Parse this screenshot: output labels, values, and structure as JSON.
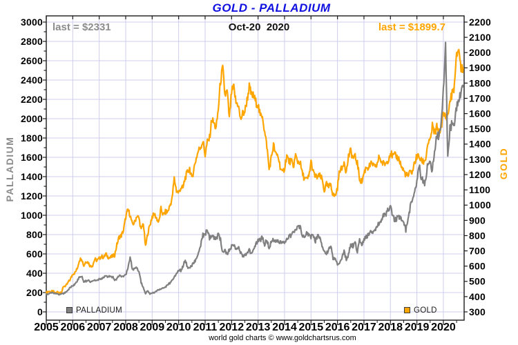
{
  "title": "GOLD - PALLADIUM",
  "subtitle": "Oct-20  2020",
  "annotations": {
    "palladium_last": "last = $2331",
    "gold_last": "last = $1899.7"
  },
  "footer": "world gold charts © www.goldchartsrus.com",
  "legend": {
    "palladium": "PALLADIUM",
    "gold": "GOLD"
  },
  "colors": {
    "palladium": "#808080",
    "gold": "#FFA500",
    "title": "#1010E0",
    "grid": "#CDCDEE",
    "axis_text": "#000000",
    "palladium_label": "#8C8C8C",
    "border": "#1a1a1a"
  },
  "left_axis": {
    "label": "PALLADIUM",
    "min": 0,
    "max": 3000,
    "step": 200,
    "tick_labels": [
      "0",
      "200",
      "400",
      "600",
      "800",
      "1000",
      "1200",
      "1400",
      "1600",
      "1800",
      "2000",
      "2200",
      "2400",
      "2600",
      "2800",
      "3000"
    ]
  },
  "right_axis": {
    "label": "GOLD",
    "min": 300,
    "max": 2200,
    "step": 100,
    "tick_labels": [
      "300",
      "400",
      "500",
      "600",
      "700",
      "800",
      "900",
      "1000",
      "1100",
      "1200",
      "1300",
      "1400",
      "1500",
      "1600",
      "1700",
      "1800",
      "1900",
      "2000",
      "2100",
      "2200"
    ]
  },
  "x_axis": {
    "tick_labels": [
      "2005",
      "2006",
      "2007",
      "2008",
      "2009",
      "2010",
      "2011",
      "2012",
      "2013",
      "2014",
      "2015",
      "2016",
      "2017",
      "2018",
      "2019",
      "2020"
    ]
  },
  "chart_data": {
    "type": "line",
    "title": "GOLD - PALLADIUM",
    "date_label": "Oct-20 2020",
    "x_start_year": 2005.0,
    "x_points_per_year": 12,
    "x_range": [
      2005.0,
      2020.79
    ],
    "left_ylim": [
      0,
      3000
    ],
    "right_ylim": [
      300,
      2200
    ],
    "grid": true,
    "legend_position": "bottom-inside",
    "series": [
      {
        "name": "GOLD",
        "axis": "right",
        "color": "#FFA500",
        "last": 1899.7,
        "monthly_values": [
          425,
          435,
          430,
          435,
          420,
          430,
          425,
          435,
          470,
          470,
          495,
          515,
          550,
          556,
          582,
          640,
          652,
          602,
          634,
          624,
          600,
          606,
          646,
          636,
          650,
          665,
          655,
          680,
          660,
          655,
          665,
          672,
          740,
          790,
          800,
          834,
          920,
          970,
          935,
          872,
          886,
          930,
          915,
          835,
          885,
          725,
          815,
          870,
          925,
          940,
          915,
          885,
          975,
          935,
          955,
          955,
          995,
          1040,
          1175,
          1095,
          1080,
          1115,
          1112,
          1180,
          1215,
          1242,
          1170,
          1246,
          1310,
          1358,
          1384,
          1420,
          1330,
          1412,
          1438,
          1564,
          1535,
          1502,
          1630,
          1815,
          1895,
          1720,
          1745,
          1565,
          1740,
          1770,
          1670,
          1664,
          1560,
          1598,
          1615,
          1690,
          1775,
          1720,
          1715,
          1675,
          1660,
          1580,
          1595,
          1475,
          1390,
          1235,
          1310,
          1395,
          1330,
          1325,
          1255,
          1205,
          1245,
          1325,
          1285,
          1290,
          1250,
          1325,
          1285,
          1285,
          1210,
          1175,
          1165,
          1185,
          1285,
          1215,
          1185,
          1185,
          1190,
          1170,
          1095,
          1135,
          1115,
          1140,
          1065,
          1060,
          1115,
          1235,
          1235,
          1290,
          1215,
          1320,
          1355,
          1310,
          1315,
          1275,
          1175,
          1150,
          1210,
          1250,
          1245,
          1265,
          1270,
          1240,
          1270,
          1320,
          1280,
          1270,
          1275,
          1300,
          1345,
          1320,
          1325,
          1315,
          1300,
          1250,
          1225,
          1200,
          1190,
          1215,
          1220,
          1280,
          1320,
          1315,
          1290,
          1285,
          1305,
          1410,
          1415,
          1520,
          1465,
          1510,
          1460,
          1520,
          1590,
          1585,
          1580,
          1685,
          1730,
          1780,
          1975,
          2035,
          1885,
          1899.7
        ]
      },
      {
        "name": "PALLADIUM",
        "axis": "left",
        "color": "#808080",
        "last": 2331,
        "monthly_values": [
          185,
          182,
          195,
          198,
          188,
          183,
          178,
          186,
          192,
          205,
          230,
          255,
          272,
          288,
          318,
          355,
          372,
          312,
          318,
          330,
          315,
          318,
          324,
          326,
          340,
          338,
          352,
          372,
          366,
          368,
          364,
          335,
          342,
          372,
          368,
          362,
          382,
          445,
          565,
          450,
          438,
          458,
          420,
          305,
          248,
          192,
          218,
          183,
          192,
          202,
          212,
          230,
          232,
          250,
          256,
          284,
          296,
          326,
          362,
          393,
          432,
          428,
          472,
          540,
          462,
          452,
          482,
          505,
          555,
          602,
          692,
          792,
          805,
          845,
          762,
          780,
          772,
          758,
          802,
          748,
          612,
          632,
          602,
          645,
          682,
          702,
          652,
          678,
          612,
          582,
          578,
          622,
          642,
          602,
          642,
          700,
          742,
          738,
          772,
          702,
          748,
          662,
          728,
          748,
          722,
          740,
          718,
          712,
          722,
          740,
          772,
          792,
          835,
          845,
          875,
          892,
          782,
          792,
          806,
          798,
          775,
          800,
          736,
          780,
          770,
          682,
          620,
          600,
          650,
          680,
          552,
          562,
          496,
          502,
          562,
          622,
          546,
          592,
          700,
          682,
          720,
          622,
          768,
          682,
          745,
          780,
          800,
          825,
          815,
          842,
          885,
          930,
          940,
          1000,
          1012,
          1060,
          1095,
          982,
          952,
          968,
          978,
          952,
          902,
          848,
          980,
          1078,
          1182,
          1262,
          1340,
          1540,
          1382,
          1352,
          1330,
          1542,
          1520,
          1472,
          1688,
          1800,
          1848,
          1920,
          2300,
          2755,
          1605,
          1900,
          1950,
          1905,
          2100,
          2200,
          2300,
          2331
        ]
      }
    ]
  }
}
